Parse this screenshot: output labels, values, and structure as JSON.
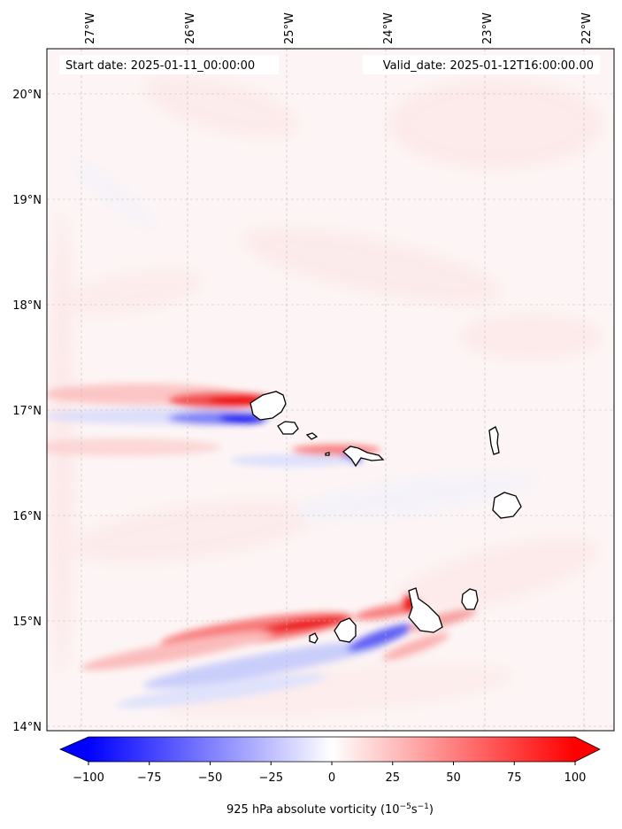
{
  "header": {
    "start_date": "Start date: 2025-01-11_00:00:00",
    "valid_date": "Valid_date: 2025-01-12T16:00:00.00"
  },
  "axes": {
    "lon_labels": [
      "27°W",
      "26°W",
      "25°W",
      "24°W",
      "23°W",
      "22°W"
    ],
    "lat_labels": [
      "20°N",
      "19°N",
      "18°N",
      "17°N",
      "16°N",
      "15°N",
      "14°N"
    ],
    "lon_values": [
      -27,
      -26,
      -25,
      -24,
      -23,
      -22
    ],
    "lat_values": [
      20,
      19,
      18,
      17,
      16,
      15,
      14
    ],
    "lon_range": [
      -27.35,
      -21.7
    ],
    "lat_range": [
      13.95,
      20.45
    ],
    "grid": "dashed light grey"
  },
  "colorbar": {
    "label": "925 hPa absolute vorticity (10",
    "label_exp": "−5",
    "label_unit": "s",
    "label_exp2": "−1",
    "label_end": ")",
    "tick_labels": [
      "−100",
      "−75",
      "−50",
      "−25",
      "0",
      "25",
      "50",
      "75",
      "100"
    ],
    "tick_values": [
      -100,
      -75,
      -50,
      -25,
      0,
      25,
      50,
      75,
      100
    ],
    "range": [
      -100,
      100
    ],
    "extend": "both",
    "colormap": "bwr",
    "neg_color": "#0000ff",
    "pos_color": "#ff0000",
    "mid_color": "#ffffff"
  },
  "islands": [
    "Santo Antão",
    "São Vicente",
    "Santa Luzia",
    "São Nicolau",
    "Sal",
    "Boa Vista",
    "Fogo",
    "Brava",
    "Santiago",
    "Maio"
  ]
}
